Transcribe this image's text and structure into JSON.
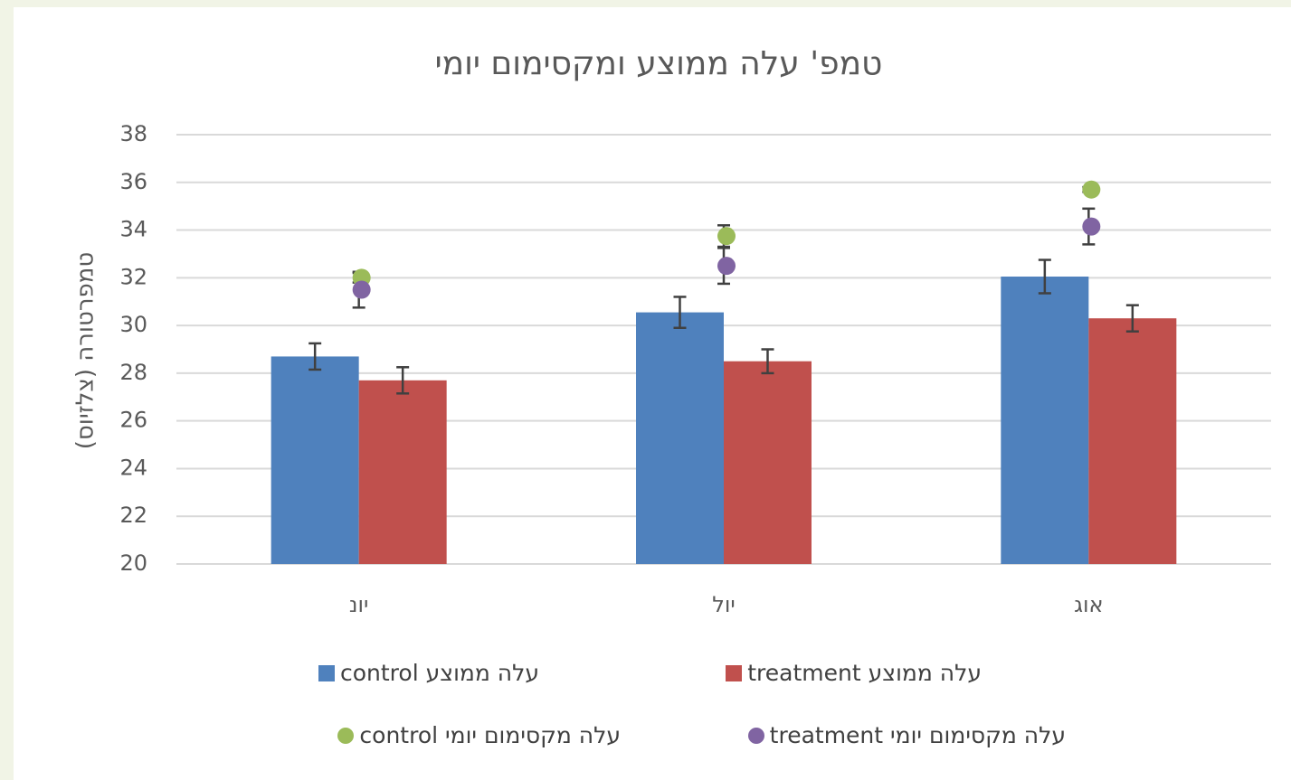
{
  "chart_data": {
    "type": "bar",
    "title": "טמפ' עלה ממוצע ומקסימום יומי",
    "y_label": "טמפרטורה (צלזיוס)",
    "categories": [
      "יונ",
      "יול",
      "אוג"
    ],
    "series": [
      {
        "name": "עלה ממוצע control",
        "type": "bar",
        "color": "#4f81bd",
        "values": [
          28.7,
          30.55,
          32.05
        ],
        "errors": [
          0.55,
          0.65,
          0.7
        ]
      },
      {
        "name": "עלה ממוצע treatment",
        "type": "bar",
        "color": "#c0504d",
        "values": [
          27.7,
          28.5,
          30.3
        ],
        "errors": [
          0.55,
          0.5,
          0.55
        ]
      },
      {
        "name": "עלה מקסימום יומי control",
        "type": "scatter",
        "color": "#9bbb59",
        "values": [
          32.0,
          33.75,
          35.7
        ],
        "errors": [
          0.2,
          0.45,
          0.1
        ]
      },
      {
        "name": "עלה מקסימום יומי treatment",
        "type": "scatter",
        "color": "#8064a2",
        "values": [
          31.5,
          32.5,
          34.15
        ],
        "errors": [
          0.75,
          0.75,
          0.75
        ]
      }
    ],
    "ylim": [
      20,
      38
    ],
    "yticks": [
      20,
      22,
      24,
      26,
      28,
      30,
      32,
      34,
      36,
      38
    ],
    "grid": true,
    "legend": "bottom"
  }
}
